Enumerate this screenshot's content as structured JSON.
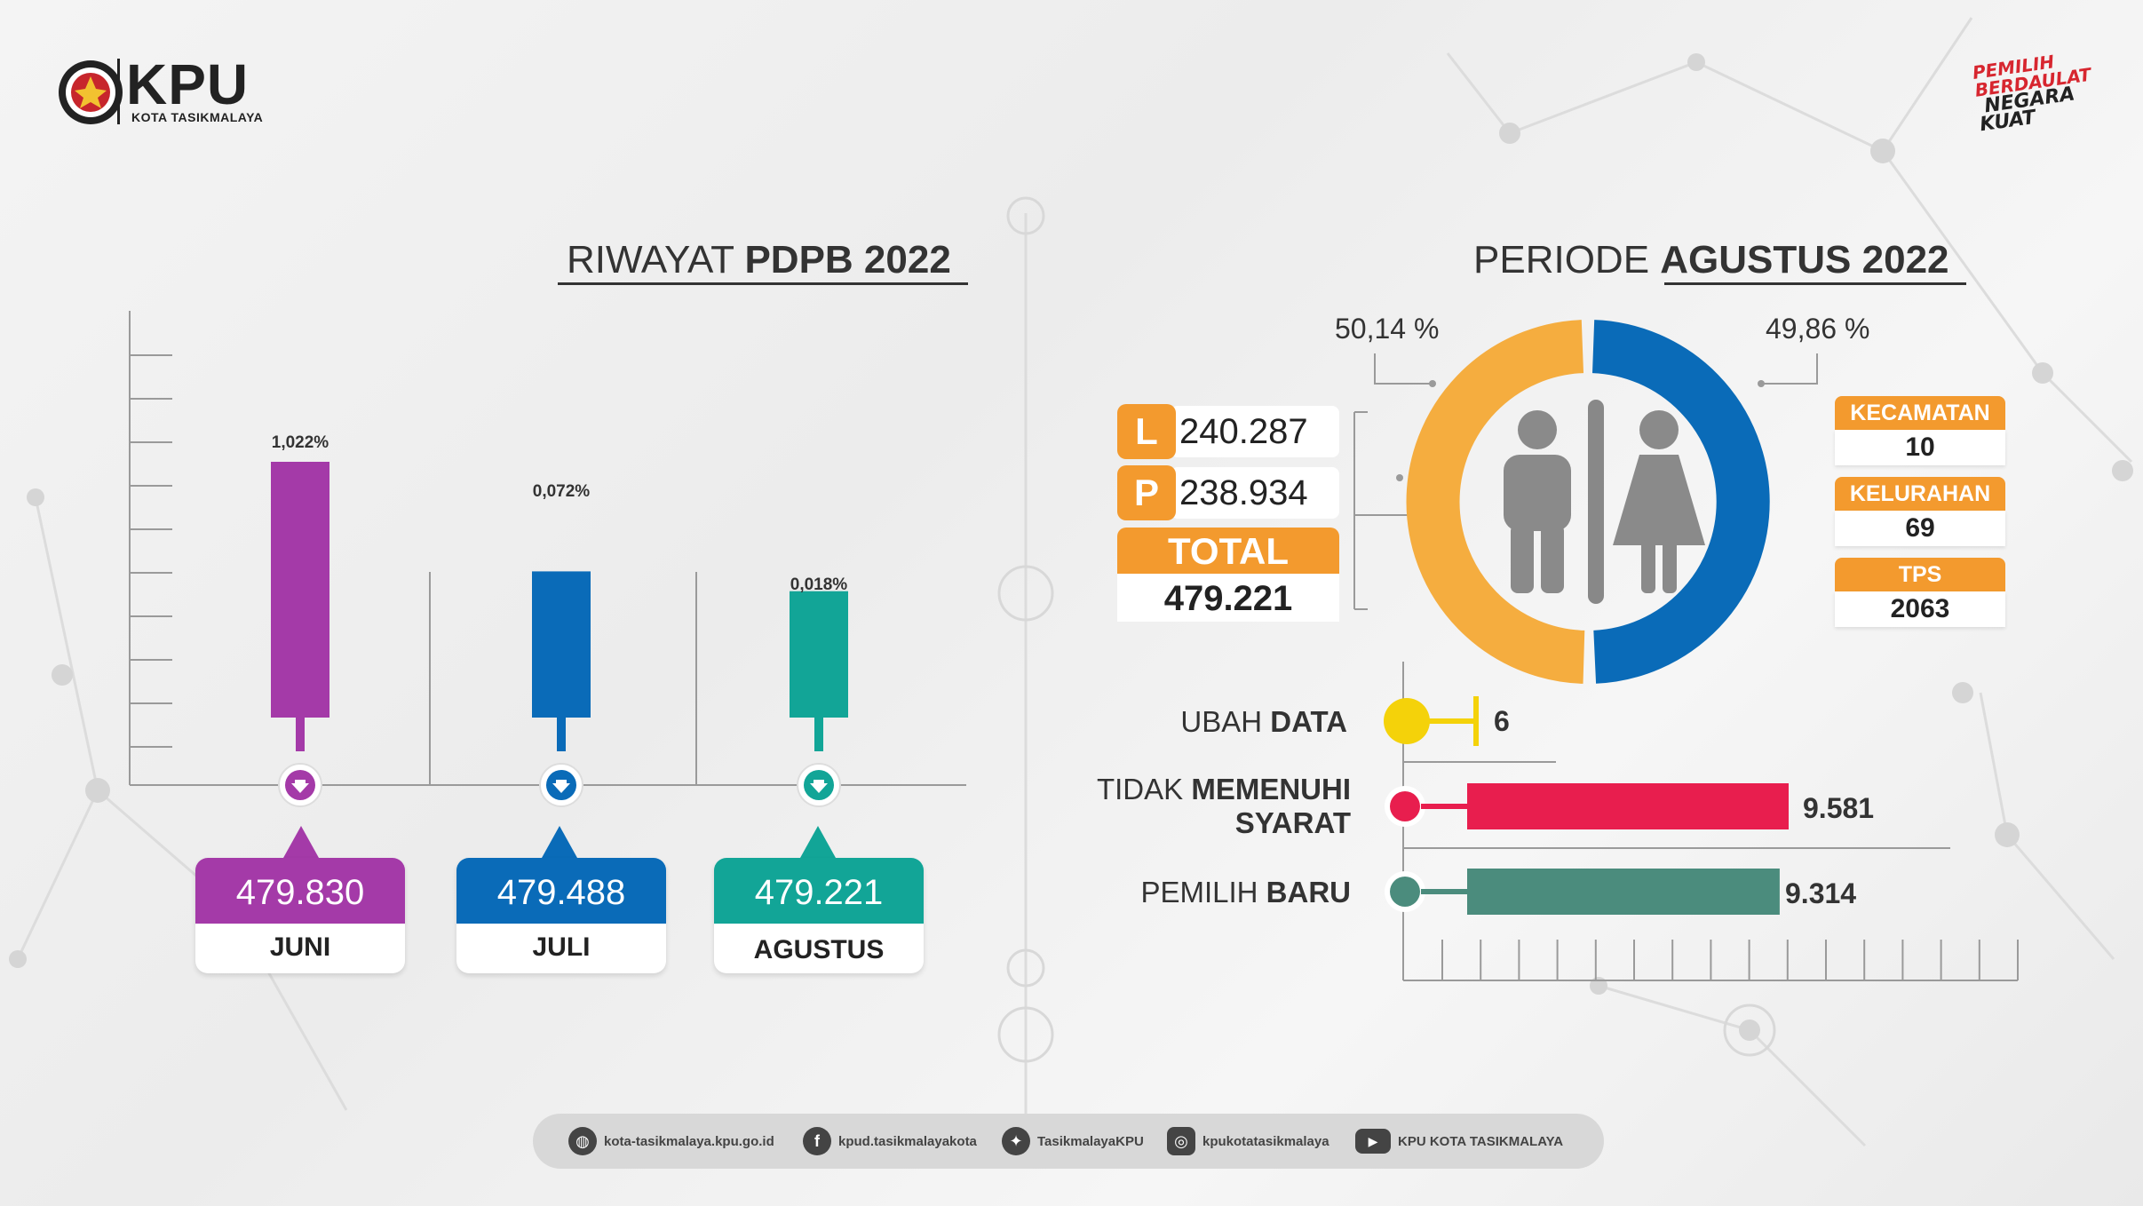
{
  "header": {
    "kpu": "KPU",
    "kpu_sub": "KOTA TASIKMALAYA",
    "slogan_lines": [
      "PEMILIH",
      "BERDAULAT",
      "NEGARA",
      "KUAT"
    ]
  },
  "left": {
    "title_light": "RIWAYAT ",
    "title_bold": "PDPB 2022",
    "months": [
      {
        "name": "JUNI",
        "value": "479.830",
        "pct": "1,022%",
        "color": "#a43aa8",
        "level": 1.022
      },
      {
        "name": "JULI",
        "value": "479.488",
        "pct": "0,072%",
        "color": "#0a6bb8",
        "level": 0.072
      },
      {
        "name": "AGUSTUS",
        "value": "479.221",
        "pct": "0,018%",
        "color": "#12a597",
        "level": 0.018
      }
    ]
  },
  "right": {
    "title_light": "PERIODE ",
    "title_bold": "AGUSTUS 2022",
    "pct_left": "50,14 %",
    "pct_right": "49,86 %",
    "share_left": 50.14,
    "share_right": 49.86,
    "color_left": "#f5ad3f",
    "color_right": "#0a6bb8",
    "l_letter": "L",
    "l_value": "240.287",
    "p_letter": "P",
    "p_value": "238.934",
    "total_label": "TOTAL",
    "total_value": "479.221",
    "info": [
      {
        "label": "KECAMATAN",
        "value": "10"
      },
      {
        "label": "KELURAHAN",
        "value": "69"
      },
      {
        "label": "TPS",
        "value": "2063"
      }
    ],
    "rows": [
      {
        "label_light": "UBAH ",
        "label_bold": "DATA",
        "value": "6",
        "amount": 6,
        "color": "#f4d20a"
      },
      {
        "label_light": "TIDAK ",
        "label_bold": "MEMENUHI",
        "label_line2": "SYARAT",
        "value": "9.581",
        "amount": 9581,
        "color": "#e81e4e"
      },
      {
        "label_light": "PEMILIH ",
        "label_bold": "BARU",
        "value": "9.314",
        "amount": 9314,
        "color": "#4b8c7d"
      }
    ]
  },
  "footer": {
    "website": "kota-tasikmalaya.kpu.go.id",
    "facebook": "kpud.tasikmalayakota",
    "twitter": "TasikmalayaKPU",
    "instagram": "kpukotatasikmalaya",
    "youtube": "KPU KOTA TASIKMALAYA"
  }
}
